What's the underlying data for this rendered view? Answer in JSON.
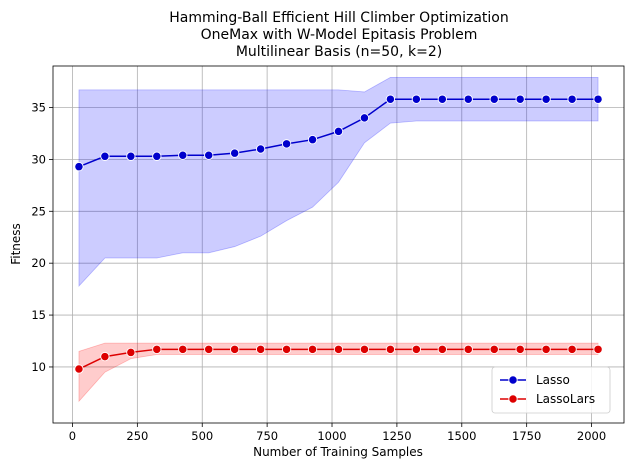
{
  "chart_data": {
    "type": "line",
    "title": [
      "Hamming-Ball Efficient Hill Climber Optimization",
      "OneMax with W-Model Epitasis Problem",
      "Multilinear Basis (n=50, k=2)"
    ],
    "xlabel": "Number of Training Samples",
    "ylabel": "Fitness",
    "xlim": [
      -75,
      2125
    ],
    "ylim": [
      4.6,
      39.0
    ],
    "xticks": [
      0,
      250,
      500,
      750,
      1000,
      1250,
      1500,
      1750,
      2000
    ],
    "yticks": [
      10,
      15,
      20,
      25,
      30,
      35
    ],
    "grid": true,
    "legend_position": "lower-right",
    "x": [
      25,
      125,
      225,
      325,
      425,
      525,
      625,
      725,
      825,
      925,
      1025,
      1125,
      1225,
      1325,
      1425,
      1525,
      1625,
      1725,
      1825,
      1925,
      2025
    ],
    "series": [
      {
        "name": "Lasso",
        "color": "#0000cc",
        "band_color": "#0000ff",
        "values": [
          29.3,
          30.3,
          30.3,
          30.3,
          30.4,
          30.4,
          30.6,
          31.0,
          31.5,
          31.9,
          32.7,
          34.0,
          35.8,
          35.8,
          35.8,
          35.8,
          35.8,
          35.8,
          35.8,
          35.8,
          35.8
        ],
        "lower": [
          17.8,
          20.5,
          20.5,
          20.5,
          21.0,
          21.0,
          21.6,
          22.6,
          24.1,
          25.4,
          27.8,
          31.6,
          33.5,
          33.7,
          33.7,
          33.7,
          33.7,
          33.7,
          33.7,
          33.7,
          33.7
        ],
        "upper": [
          36.7,
          36.7,
          36.7,
          36.7,
          36.7,
          36.7,
          36.7,
          36.7,
          36.7,
          36.7,
          36.7,
          36.5,
          37.9,
          37.9,
          37.9,
          37.9,
          37.9,
          37.9,
          37.9,
          37.9,
          37.9
        ]
      },
      {
        "name": "LassoLars",
        "color": "#dd0000",
        "band_color": "#ff0000",
        "values": [
          9.8,
          11.0,
          11.4,
          11.7,
          11.7,
          11.7,
          11.7,
          11.7,
          11.7,
          11.7,
          11.7,
          11.7,
          11.7,
          11.7,
          11.7,
          11.7,
          11.7,
          11.7,
          11.7,
          11.7,
          11.7
        ],
        "lower": [
          6.7,
          9.5,
          10.8,
          11.2,
          11.2,
          11.2,
          11.2,
          11.2,
          11.2,
          11.2,
          11.2,
          11.2,
          11.2,
          11.2,
          11.2,
          11.2,
          11.2,
          11.2,
          11.2,
          11.2,
          11.2
        ],
        "upper": [
          11.5,
          12.3,
          12.3,
          12.3,
          12.3,
          12.3,
          12.3,
          12.3,
          12.3,
          12.3,
          12.3,
          12.3,
          12.3,
          12.3,
          12.3,
          12.3,
          12.3,
          12.3,
          12.3,
          12.3,
          12.3
        ]
      }
    ]
  }
}
